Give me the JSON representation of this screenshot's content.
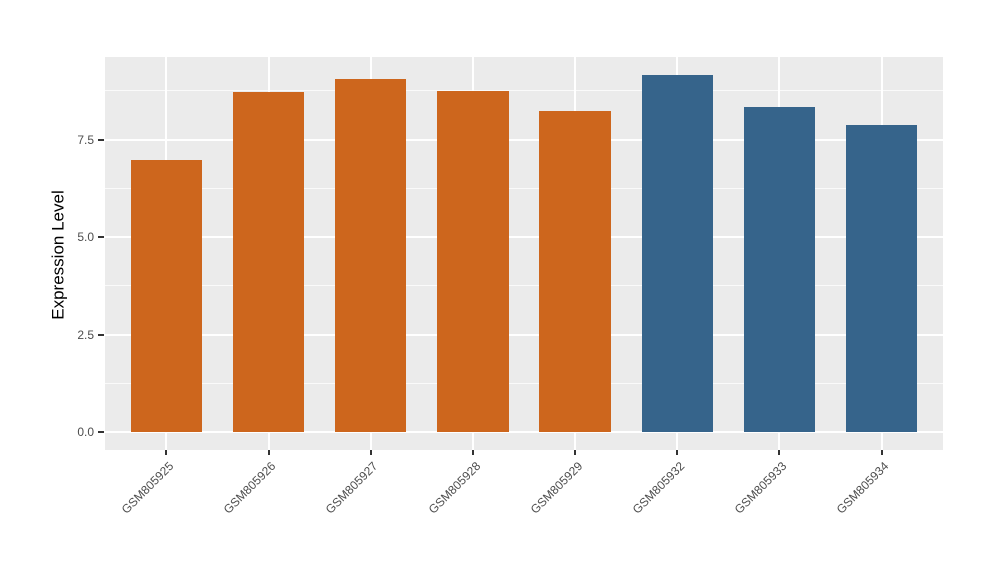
{
  "chart_data": {
    "type": "bar",
    "categories": [
      "GSM805925",
      "GSM805926",
      "GSM805927",
      "GSM805928",
      "GSM805929",
      "GSM805932",
      "GSM805933",
      "GSM805934"
    ],
    "values": [
      6.98,
      8.71,
      9.06,
      8.75,
      8.23,
      9.16,
      8.34,
      7.88
    ],
    "bar_colors": [
      "#CD661D",
      "#CD661D",
      "#CD661D",
      "#CD661D",
      "#CD661D",
      "#36648B",
      "#36648B",
      "#36648B"
    ],
    "groups": [
      {
        "color": "#CD661D",
        "samples": [
          "GSM805925",
          "GSM805926",
          "GSM805927",
          "GSM805928",
          "GSM805929"
        ]
      },
      {
        "color": "#36648B",
        "samples": [
          "GSM805932",
          "GSM805933",
          "GSM805934"
        ]
      }
    ],
    "ylabel": "Expression Level",
    "xlabel": "",
    "y_ticks": [
      {
        "value": 0.0,
        "label": "0.0"
      },
      {
        "value": 2.5,
        "label": "2.5"
      },
      {
        "value": 5.0,
        "label": "5.0"
      },
      {
        "value": 7.5,
        "label": "7.5"
      }
    ],
    "y_minor_ticks": [
      1.25,
      3.75,
      6.25,
      8.75
    ],
    "ylim": [
      -0.46,
      9.62
    ],
    "grid": true,
    "legend": "none",
    "x_tick_rotation": 45,
    "panel_background": "#EBEBEB",
    "gridline_color": "#FFFFFF",
    "tick_label_color": "#4D4D4D"
  }
}
